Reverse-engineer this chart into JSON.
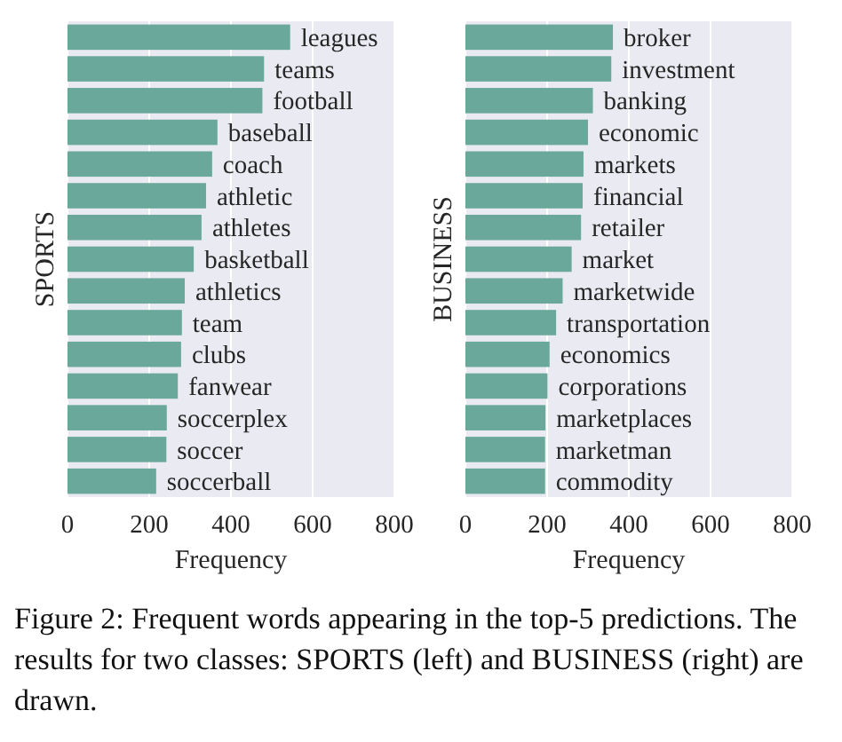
{
  "chart_data": [
    {
      "type": "bar",
      "orientation": "horizontal",
      "ylabel": "SPORTS",
      "xlabel": "Frequency",
      "color": "#6aa89b",
      "grid": "x",
      "categories": [
        "leagues",
        "teams",
        "football",
        "baseball",
        "coach",
        "athletic",
        "athletes",
        "basketball",
        "athletics",
        "team",
        "clubs",
        "fanwear",
        "soccerplex",
        "soccer",
        "soccerball"
      ],
      "values": [
        545,
        481,
        477,
        367,
        354,
        339,
        328,
        309,
        287,
        280,
        278,
        270,
        243,
        242,
        217
      ],
      "xlim": [
        0,
        800
      ],
      "xticks": [
        0,
        200,
        400,
        600,
        800
      ],
      "annotations": [
        "Figure 2: Frequent words appearing in the top-5 predictions. The results for two classes: SPORTS (left) and BUSINESS (right) are drawn."
      ]
    },
    {
      "type": "bar",
      "orientation": "horizontal",
      "ylabel": "BUSINESS",
      "xlabel": "Frequency",
      "color": "#6aa89b",
      "grid": "x",
      "categories": [
        "broker",
        "investment",
        "banking",
        "economic",
        "markets",
        "financial",
        "retailer",
        "market",
        "marketwide",
        "transportation",
        "economics",
        "corporations",
        "marketplaces",
        "marketman",
        "commodity"
      ],
      "values": [
        361,
        357,
        312,
        300,
        289,
        287,
        283,
        260,
        238,
        222,
        206,
        201,
        196,
        195,
        195
      ],
      "xlim": [
        0,
        800
      ],
      "xticks": [
        0,
        200,
        400,
        600,
        800
      ]
    }
  ]
}
